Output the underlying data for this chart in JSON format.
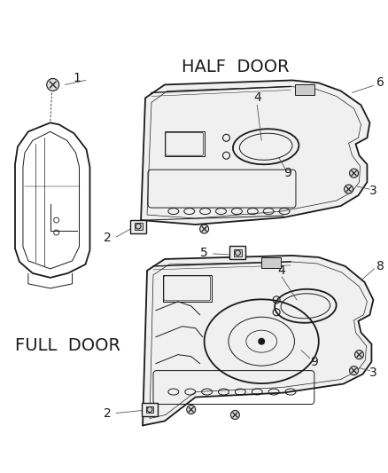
{
  "background_color": "#ffffff",
  "line_color": "#1a1a1a",
  "label_color": "#1a1a1a",
  "half_door_label": "HALF  DOOR",
  "full_door_label": "FULL  DOOR",
  "figsize": [
    4.38,
    5.33
  ],
  "dpi": 100
}
